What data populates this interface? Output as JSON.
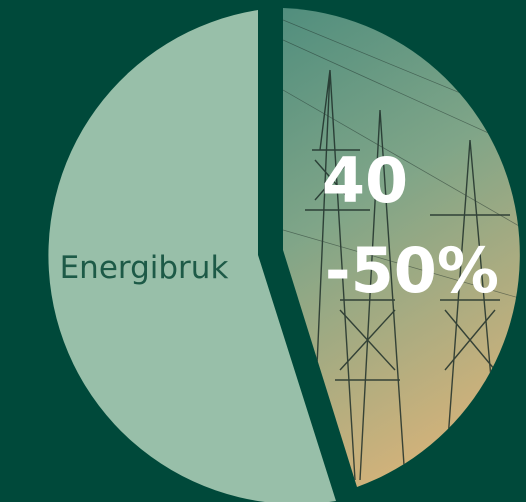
{
  "slices": [
    {
      "label": "Energibruk"
    },
    {
      "lines": [
        "40",
        "-50%"
      ]
    }
  ]
}
